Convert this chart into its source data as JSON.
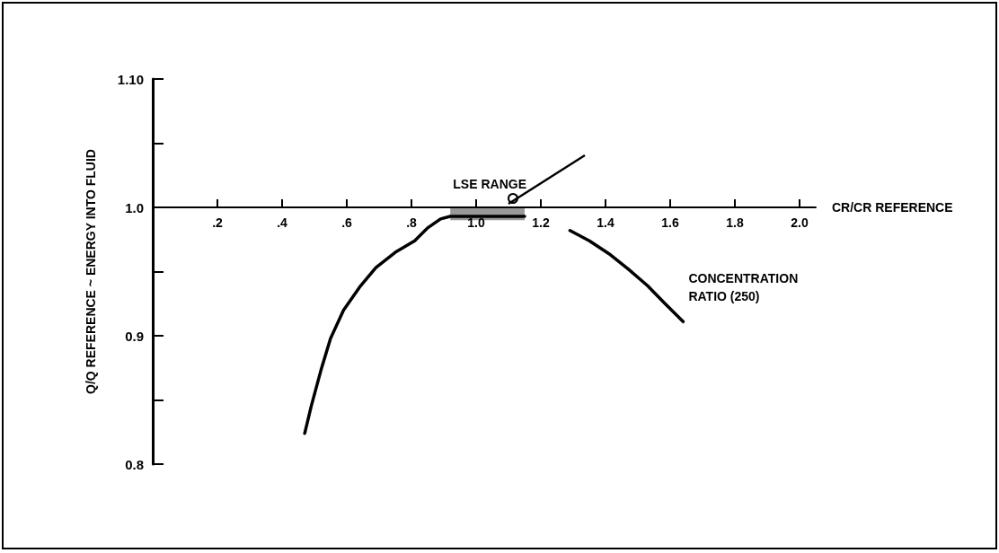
{
  "chart_data": {
    "type": "line",
    "xlabel": "CR/CR REFERENCE",
    "ylabel": "Q/Q REFERENCE ~ ENERGY INTO FLUID",
    "xlim": [
      0,
      2.05
    ],
    "ylim": [
      0.8,
      1.1
    ],
    "xticks": [
      {
        "value": 0.2,
        "label": ".2"
      },
      {
        "value": 0.4,
        "label": ".4"
      },
      {
        "value": 0.6,
        "label": ".6"
      },
      {
        "value": 0.8,
        "label": ".8"
      },
      {
        "value": 1.0,
        "label": "1.0"
      },
      1.2,
      1.4,
      1.6,
      1.8,
      {
        "value": 2.0,
        "label": "2.0"
      }
    ],
    "yticks": [
      0.8,
      {
        "value": 0.85,
        "label": null
      },
      0.9,
      {
        "value": 0.95,
        "label": null
      },
      {
        "value": 1.0,
        "label": "1.0"
      },
      {
        "value": 1.05,
        "label": null
      },
      {
        "value": 1.1,
        "label": "1.10"
      }
    ],
    "series": [
      {
        "name": "CONCENTRATION RATIO (250)",
        "color": "#000000",
        "x": [
          0.47,
          0.49,
          0.52,
          0.55,
          0.59,
          0.64,
          0.69,
          0.75,
          0.81,
          0.85,
          0.89,
          0.92,
          0.96,
          1.0,
          1.05,
          1.1,
          1.15,
          1.2,
          1.29,
          1.35,
          1.41,
          1.47,
          1.53,
          1.58,
          1.64
        ],
        "values": [
          0.824,
          0.845,
          0.873,
          0.898,
          0.92,
          0.938,
          0.953,
          0.965,
          0.974,
          0.984,
          0.991,
          0.993,
          0.993,
          0.993,
          0.993,
          0.993,
          0.993,
          null,
          0.982,
          0.974,
          0.964,
          0.952,
          0.939,
          0.926,
          0.911
        ],
        "lower": [
          null,
          null,
          null,
          null,
          null,
          null,
          null,
          null,
          null,
          null,
          null,
          0.99,
          0.99,
          0.99,
          0.99,
          0.99,
          0.99,
          null,
          null,
          null,
          null,
          null,
          null,
          null,
          null
        ],
        "upper": [
          null,
          null,
          null,
          null,
          null,
          null,
          null,
          null,
          null,
          null,
          null,
          1.0,
          1.0,
          1.0,
          1.0,
          1.0,
          1.0,
          null,
          null,
          null,
          null,
          null,
          null,
          null,
          null
        ]
      }
    ],
    "annotations": [
      {
        "text": "LSE RANGE",
        "x": 1.1,
        "y": 1.0
      }
    ],
    "grid": false,
    "legend": false,
    "marker": "none",
    "line_style": "solid"
  }
}
